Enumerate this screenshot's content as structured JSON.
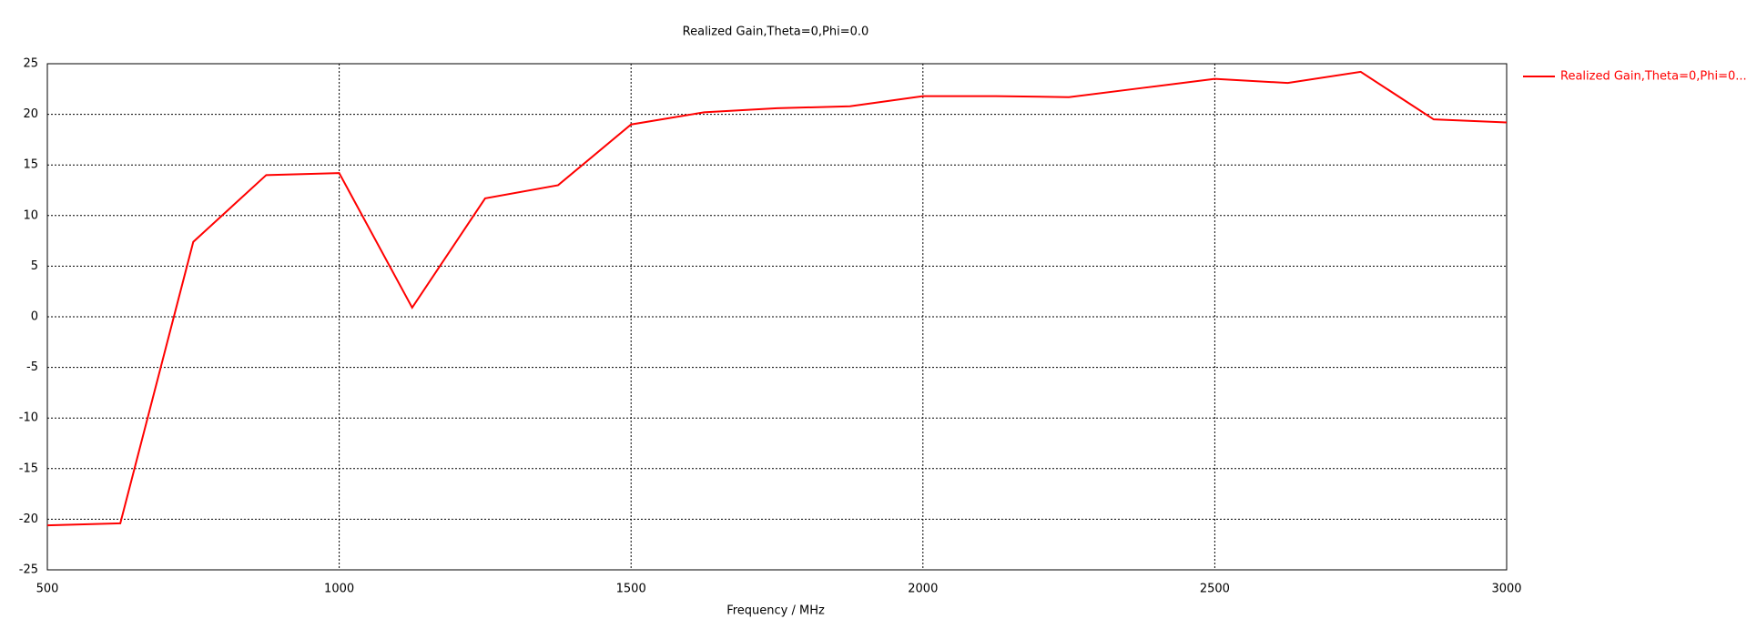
{
  "chart_data": {
    "type": "line",
    "title": "Realized Gain,Theta=0,Phi=0.0",
    "x_label": "Frequency / MHz",
    "x": [
      500,
      625,
      750,
      875,
      1000,
      1125,
      1250,
      1375,
      1500,
      1625,
      1750,
      1875,
      2000,
      2125,
      2250,
      2375,
      2500,
      2625,
      2750,
      2875,
      3000
    ],
    "series": [
      {
        "name": "Realized Gain,Theta=0,Phi=0...",
        "color": "#ff0000",
        "values": [
          -20.6,
          -20.4,
          7.4,
          14.0,
          14.2,
          0.9,
          11.7,
          13.0,
          19.0,
          20.2,
          20.6,
          20.8,
          21.8,
          21.8,
          21.7,
          22.6,
          23.5,
          23.1,
          24.2,
          19.5,
          19.2
        ]
      }
    ],
    "xlim": [
      500,
      3000
    ],
    "xticks": [
      500,
      1000,
      1500,
      2000,
      2500,
      3000
    ],
    "ylim": [
      -25,
      25
    ],
    "yticks": [
      -25,
      -20,
      -15,
      -10,
      -5,
      0,
      5,
      10,
      15,
      20,
      25
    ],
    "grid": true,
    "legend": "right"
  }
}
